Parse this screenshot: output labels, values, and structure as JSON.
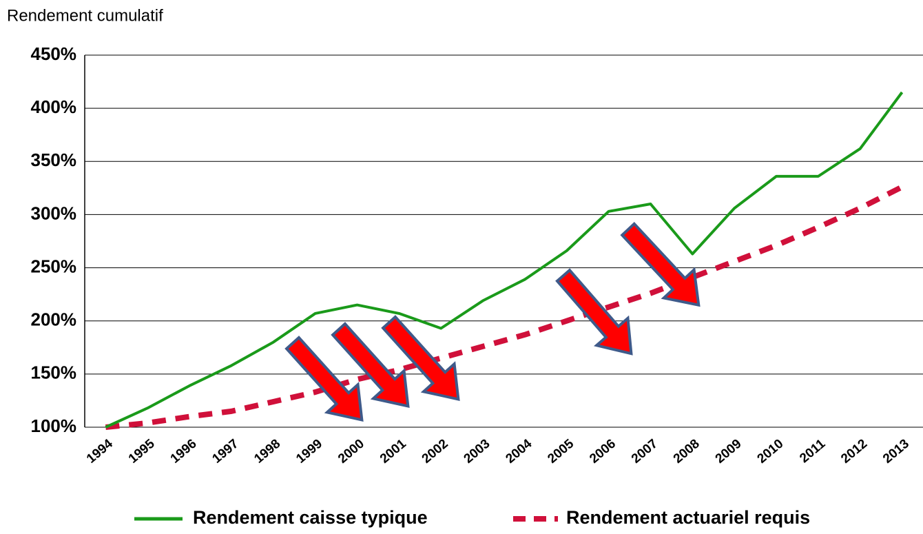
{
  "chart_data": {
    "type": "line",
    "title": "Rendement cumulatif",
    "categories": [
      "1994",
      "1995",
      "1996",
      "1997",
      "1998",
      "1999",
      "2000",
      "2001",
      "2002",
      "2003",
      "2004",
      "2005",
      "2006",
      "2007",
      "2008",
      "2009",
      "2010",
      "2011",
      "2012",
      "2013"
    ],
    "series": [
      {
        "name": "Rendement caisse typique",
        "color": "#1a9a1a",
        "dashed": false,
        "values": [
          100,
          118,
          139,
          158,
          180,
          207,
          215,
          207,
          193,
          219,
          239,
          266,
          303,
          310,
          263,
          306,
          336,
          336,
          362,
          415
        ]
      },
      {
        "name": "Rendement actuariel requis",
        "color": "#d0103a",
        "dashed": true,
        "values": [
          100,
          104,
          110,
          115,
          124,
          133,
          145,
          154,
          165,
          176,
          187,
          200,
          213,
          226,
          241,
          256,
          271,
          288,
          306,
          326
        ]
      }
    ],
    "ylim": [
      100,
      450
    ],
    "yticks": [
      {
        "value": 100,
        "label": "100%"
      },
      {
        "value": 150,
        "label": "150%"
      },
      {
        "value": 200,
        "label": "200%"
      },
      {
        "value": 250,
        "label": "250%"
      },
      {
        "value": 300,
        "label": "300%"
      },
      {
        "value": 350,
        "label": "350%"
      },
      {
        "value": 400,
        "label": "400%"
      },
      {
        "value": 450,
        "label": "450%"
      }
    ],
    "grid": true
  }
}
